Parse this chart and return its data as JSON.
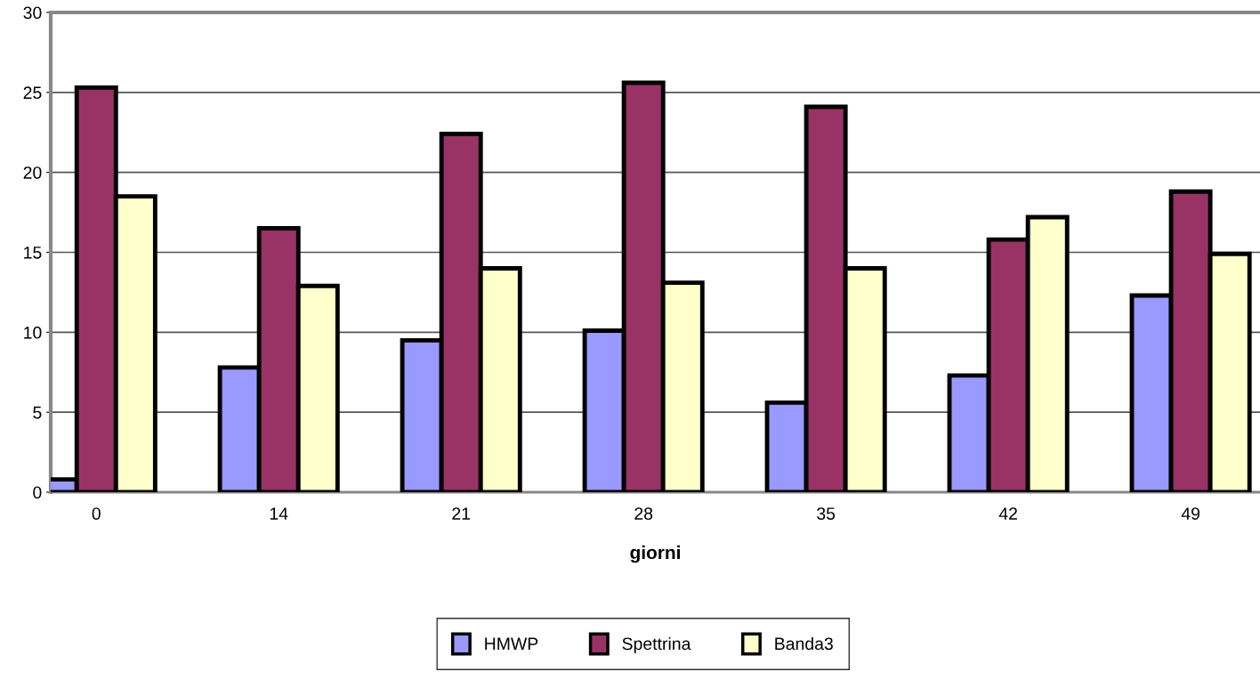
{
  "chart_data": {
    "type": "bar",
    "xlabel": "giorni",
    "categories": [
      "0",
      "14",
      "21",
      "28",
      "35",
      "42",
      "49"
    ],
    "series": [
      {
        "name": "HMWP",
        "color": "#9999ff",
        "values": [
          0.8,
          7.8,
          9.5,
          10.1,
          5.6,
          7.3,
          12.3
        ]
      },
      {
        "name": "Spettrina",
        "color": "#993366",
        "values": [
          25.3,
          16.5,
          22.4,
          25.6,
          24.1,
          15.8,
          18.8
        ]
      },
      {
        "name": "Banda3",
        "color": "#ffffcc",
        "values": [
          18.5,
          12.9,
          14.0,
          13.1,
          14.0,
          17.2,
          14.9
        ]
      }
    ],
    "ylim": [
      0,
      30
    ],
    "yticks": [
      0,
      5,
      10,
      15,
      20,
      25,
      30
    ],
    "grid": "y",
    "legend": "bottom"
  }
}
